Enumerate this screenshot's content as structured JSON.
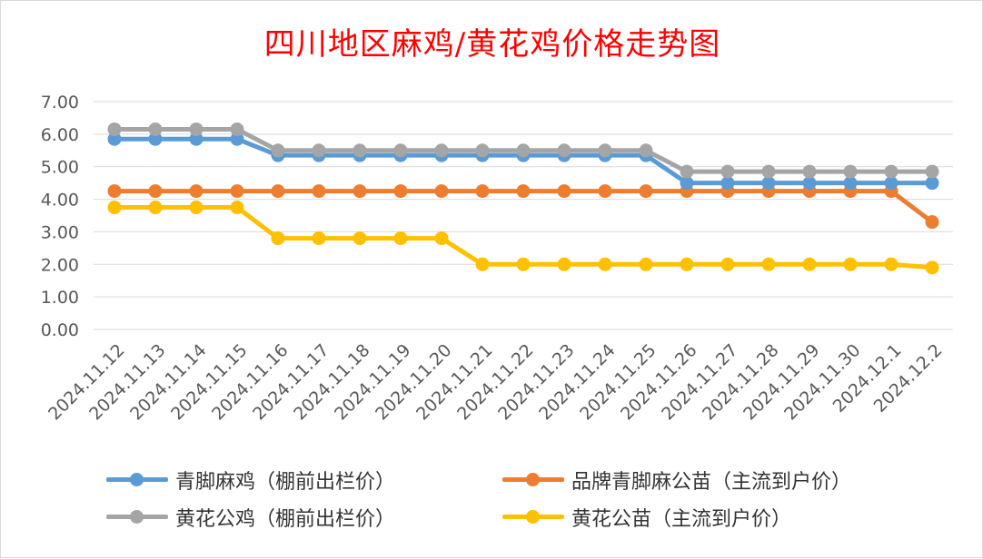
{
  "chart_data": {
    "type": "line",
    "title": "四川地区麻鸡/黄花鸡价格走势图",
    "xlabel": "",
    "ylabel": "",
    "ylim": [
      0,
      7
    ],
    "yticks": [
      "0.00",
      "1.00",
      "2.00",
      "3.00",
      "4.00",
      "5.00",
      "6.00",
      "7.00"
    ],
    "grid": true,
    "legend_position": "bottom",
    "categories": [
      "2024.11.12",
      "2024.11.13",
      "2024.11.14",
      "2024.11.15",
      "2024.11.16",
      "2024.11.17",
      "2024.11.18",
      "2024.11.19",
      "2024.11.20",
      "2024.11.21",
      "2024.11.22",
      "2024.11.23",
      "2024.11.24",
      "2024.11.25",
      "2024.11.26",
      "2024.11.27",
      "2024.11.28",
      "2024.11.29",
      "2024.11.30",
      "2024.12.1",
      "2024.12.2"
    ],
    "series": [
      {
        "name": "青脚麻鸡（棚前出栏价）",
        "color": "#5b9bd5",
        "values": [
          5.85,
          5.85,
          5.85,
          5.85,
          5.35,
          5.35,
          5.35,
          5.35,
          5.35,
          5.35,
          5.35,
          5.35,
          5.35,
          5.35,
          4.5,
          4.5,
          4.5,
          4.5,
          4.5,
          4.5,
          4.5
        ]
      },
      {
        "name": "品牌青脚麻公苗（主流到户价）",
        "color": "#ed7d31",
        "values": [
          4.25,
          4.25,
          4.25,
          4.25,
          4.25,
          4.25,
          4.25,
          4.25,
          4.25,
          4.25,
          4.25,
          4.25,
          4.25,
          4.25,
          4.25,
          4.25,
          4.25,
          4.25,
          4.25,
          4.25,
          3.3
        ]
      },
      {
        "name": "黄花公鸡（棚前出栏价）",
        "color": "#a5a5a5",
        "values": [
          6.15,
          6.15,
          6.15,
          6.15,
          5.5,
          5.5,
          5.5,
          5.5,
          5.5,
          5.5,
          5.5,
          5.5,
          5.5,
          5.5,
          4.85,
          4.85,
          4.85,
          4.85,
          4.85,
          4.85,
          4.85
        ]
      },
      {
        "name": "黄花公苗（主流到户价）",
        "color": "#ffc000",
        "values": [
          3.75,
          3.75,
          3.75,
          3.75,
          2.8,
          2.8,
          2.8,
          2.8,
          2.8,
          2.0,
          2.0,
          2.0,
          2.0,
          2.0,
          2.0,
          2.0,
          2.0,
          2.0,
          2.0,
          2.0,
          1.9
        ]
      }
    ],
    "draw_order": [
      3,
      1,
      0,
      2
    ]
  }
}
